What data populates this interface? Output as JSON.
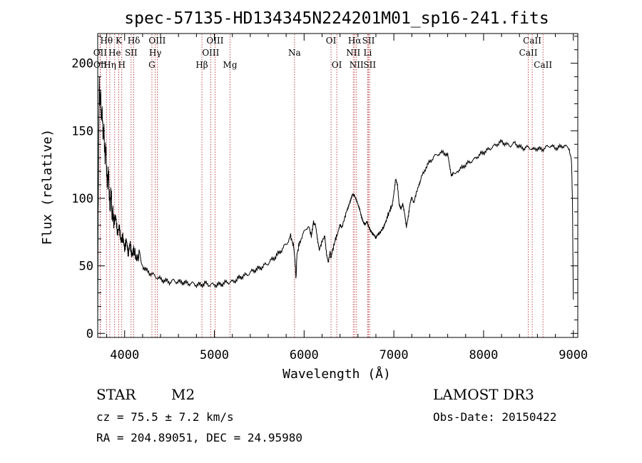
{
  "chart_data": {
    "type": "line",
    "title": "spec-57135-HD134345N224201M01_sp16-241.fits",
    "xlabel": "Wavelength (Å)",
    "ylabel": "Flux (relative)",
    "xlim": [
      3700,
      9050
    ],
    "ylim": [
      -3,
      222
    ],
    "xticks": [
      4000,
      5000,
      6000,
      7000,
      8000,
      9000
    ],
    "yticks": [
      0,
      50,
      100,
      150,
      200
    ],
    "colors": {
      "spectrum": "#000000",
      "line_markers": "#b22222",
      "axes": "#000000"
    },
    "series": [
      {
        "name": "spectrum",
        "points": [
          [
            3700,
            5
          ],
          [
            3705,
            90
          ],
          [
            3712,
            150
          ],
          [
            3718,
            185
          ],
          [
            3725,
            170
          ],
          [
            3732,
            178
          ],
          [
            3740,
            160
          ],
          [
            3750,
            165
          ],
          [
            3760,
            145
          ],
          [
            3770,
            150
          ],
          [
            3780,
            130
          ],
          [
            3790,
            138
          ],
          [
            3800,
            118
          ],
          [
            3810,
            112
          ],
          [
            3820,
            120
          ],
          [
            3830,
            100
          ],
          [
            3840,
            95
          ],
          [
            3850,
            106
          ],
          [
            3860,
            85
          ],
          [
            3870,
            92
          ],
          [
            3880,
            80
          ],
          [
            3900,
            86
          ],
          [
            3920,
            74
          ],
          [
            3940,
            80
          ],
          [
            3960,
            70
          ],
          [
            3980,
            74
          ],
          [
            4000,
            66
          ],
          [
            4020,
            73
          ],
          [
            4040,
            62
          ],
          [
            4060,
            70
          ],
          [
            4080,
            60
          ],
          [
            4100,
            63
          ],
          [
            4130,
            55
          ],
          [
            4160,
            57
          ],
          [
            4200,
            50
          ],
          [
            4250,
            46
          ],
          [
            4300,
            44
          ],
          [
            4350,
            42
          ],
          [
            4400,
            40
          ],
          [
            4450,
            39
          ],
          [
            4500,
            38
          ],
          [
            4550,
            39
          ],
          [
            4600,
            38
          ],
          [
            4650,
            38
          ],
          [
            4700,
            37
          ],
          [
            4750,
            37
          ],
          [
            4800,
            36
          ],
          [
            4850,
            36
          ],
          [
            4900,
            37
          ],
          [
            4950,
            36
          ],
          [
            5000,
            36
          ],
          [
            5050,
            36
          ],
          [
            5100,
            37
          ],
          [
            5150,
            38
          ],
          [
            5200,
            38
          ],
          [
            5250,
            40
          ],
          [
            5300,
            42
          ],
          [
            5350,
            43
          ],
          [
            5400,
            45
          ],
          [
            5450,
            47
          ],
          [
            5500,
            48
          ],
          [
            5550,
            50
          ],
          [
            5600,
            52
          ],
          [
            5650,
            55
          ],
          [
            5700,
            58
          ],
          [
            5750,
            62
          ],
          [
            5800,
            66
          ],
          [
            5850,
            72
          ],
          [
            5880,
            65
          ],
          [
            5900,
            52
          ],
          [
            5910,
            40
          ],
          [
            5920,
            58
          ],
          [
            5950,
            68
          ],
          [
            6000,
            75
          ],
          [
            6050,
            80
          ],
          [
            6080,
            72
          ],
          [
            6100,
            82
          ],
          [
            6130,
            80
          ],
          [
            6150,
            70
          ],
          [
            6170,
            62
          ],
          [
            6200,
            68
          ],
          [
            6230,
            72
          ],
          [
            6250,
            58
          ],
          [
            6270,
            52
          ],
          [
            6290,
            60
          ],
          [
            6300,
            55
          ],
          [
            6320,
            62
          ],
          [
            6350,
            70
          ],
          [
            6380,
            75
          ],
          [
            6400,
            80
          ],
          [
            6420,
            78
          ],
          [
            6450,
            85
          ],
          [
            6480,
            92
          ],
          [
            6500,
            96
          ],
          [
            6520,
            100
          ],
          [
            6540,
            104
          ],
          [
            6560,
            103
          ],
          [
            6580,
            100
          ],
          [
            6600,
            96
          ],
          [
            6620,
            92
          ],
          [
            6640,
            86
          ],
          [
            6660,
            82
          ],
          [
            6680,
            80
          ],
          [
            6700,
            82
          ],
          [
            6720,
            78
          ],
          [
            6740,
            75
          ],
          [
            6760,
            73
          ],
          [
            6780,
            72
          ],
          [
            6800,
            70
          ],
          [
            6820,
            73
          ],
          [
            6850,
            75
          ],
          [
            6880,
            78
          ],
          [
            6900,
            82
          ],
          [
            6920,
            85
          ],
          [
            6950,
            90
          ],
          [
            6980,
            95
          ],
          [
            7000,
            104
          ],
          [
            7020,
            115
          ],
          [
            7040,
            110
          ],
          [
            7060,
            95
          ],
          [
            7080,
            92
          ],
          [
            7100,
            95
          ],
          [
            7120,
            88
          ],
          [
            7140,
            78
          ],
          [
            7160,
            85
          ],
          [
            7180,
            95
          ],
          [
            7200,
            100
          ],
          [
            7220,
            96
          ],
          [
            7250,
            104
          ],
          [
            7280,
            110
          ],
          [
            7300,
            114
          ],
          [
            7350,
            122
          ],
          [
            7400,
            127
          ],
          [
            7450,
            131
          ],
          [
            7500,
            133
          ],
          [
            7550,
            134
          ],
          [
            7600,
            132
          ],
          [
            7620,
            124
          ],
          [
            7640,
            116
          ],
          [
            7660,
            118
          ],
          [
            7700,
            120
          ],
          [
            7750,
            122
          ],
          [
            7800,
            125
          ],
          [
            7850,
            127
          ],
          [
            7900,
            129
          ],
          [
            7950,
            132
          ],
          [
            8000,
            134
          ],
          [
            8050,
            136
          ],
          [
            8100,
            138
          ],
          [
            8150,
            140
          ],
          [
            8200,
            142
          ],
          [
            8250,
            140
          ],
          [
            8300,
            139
          ],
          [
            8350,
            141
          ],
          [
            8400,
            138
          ],
          [
            8450,
            137
          ],
          [
            8500,
            138
          ],
          [
            8550,
            136
          ],
          [
            8600,
            137
          ],
          [
            8650,
            136
          ],
          [
            8700,
            138
          ],
          [
            8750,
            139
          ],
          [
            8800,
            137
          ],
          [
            8850,
            138
          ],
          [
            8900,
            139
          ],
          [
            8950,
            137
          ],
          [
            8980,
            128
          ],
          [
            8990,
            100
          ],
          [
            8995,
            60
          ],
          [
            9000,
            25
          ]
        ]
      }
    ],
    "lines": [
      {
        "label": "Hθ",
        "wl": 3798,
        "row": 1
      },
      {
        "label": "OII",
        "wl": 3727,
        "row": 2
      },
      {
        "label": "OII",
        "wl": 3729,
        "row": 3
      },
      {
        "label": "K",
        "wl": 3934,
        "row": 1
      },
      {
        "label": "He",
        "wl": 3889,
        "row": 2
      },
      {
        "label": "Hη",
        "wl": 3835,
        "row": 3
      },
      {
        "label": "H",
        "wl": 3968,
        "row": 3
      },
      {
        "label": "Hδ",
        "wl": 4102,
        "row": 1
      },
      {
        "label": "SII",
        "wl": 4072,
        "row": 2
      },
      {
        "label": "OIII",
        "wl": 4363,
        "row": 1
      },
      {
        "label": "Hγ",
        "wl": 4341,
        "row": 2
      },
      {
        "label": "G",
        "wl": 4304,
        "row": 3
      },
      {
        "label": "Hβ",
        "wl": 4861,
        "row": 3
      },
      {
        "label": "OIII",
        "wl": 5007,
        "row": 1
      },
      {
        "label": "OIII",
        "wl": 4959,
        "row": 2
      },
      {
        "label": "Mg",
        "wl": 5175,
        "row": 3
      },
      {
        "label": "Na",
        "wl": 5893,
        "row": 2
      },
      {
        "label": "OI",
        "wl": 6300,
        "row": 1
      },
      {
        "label": "OI",
        "wl": 6364,
        "row": 3
      },
      {
        "label": "Hα",
        "wl": 6563,
        "row": 1
      },
      {
        "label": "NII",
        "wl": 6548,
        "row": 2
      },
      {
        "label": "NII",
        "wl": 6584,
        "row": 3
      },
      {
        "label": "SII",
        "wl": 6717,
        "row": 1
      },
      {
        "label": "Li",
        "wl": 6708,
        "row": 2
      },
      {
        "label": "SII",
        "wl": 6731,
        "row": 3
      },
      {
        "label": "CaII",
        "wl": 8542,
        "row": 1
      },
      {
        "label": "CaII",
        "wl": 8498,
        "row": 2
      },
      {
        "label": "CaII",
        "wl": 8662,
        "row": 3
      }
    ]
  },
  "info": {
    "object_class": "STAR",
    "subclass": "M2",
    "survey": "LAMOST DR3",
    "cz": "cz = 75.5 ± 7.2 km/s",
    "obs_date": "Obs-Date: 20150422",
    "coords": "RA = 204.89051, DEC =  24.95980"
  }
}
